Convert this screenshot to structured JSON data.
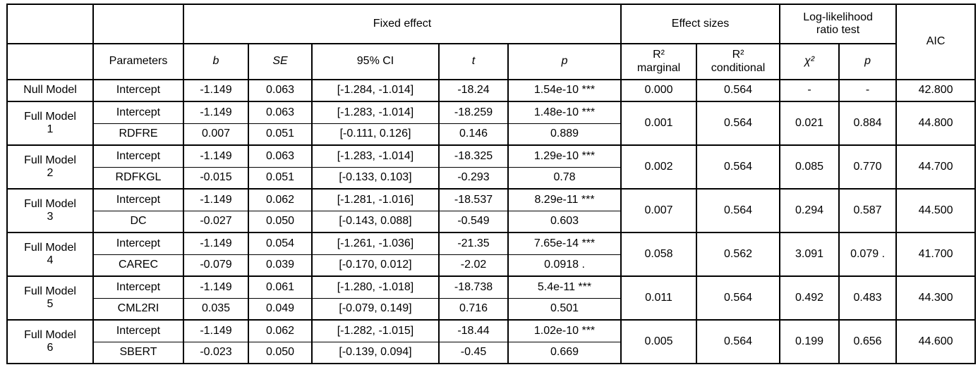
{
  "table": {
    "header": {
      "groups": {
        "fixed_effect": "Fixed effect",
        "effect_sizes": "Effect sizes",
        "lrt": "Log-likelihood\nratio test",
        "aic": "AIC"
      },
      "columns": {
        "parameters": "Parameters",
        "b": "b",
        "se": "SE",
        "ci": "95% CI",
        "t": "t",
        "p": "p",
        "r2_marginal": "R²\nmarginal",
        "r2_conditional": "R²\nconditional",
        "chi2": "χ²",
        "p_lrt": "p"
      }
    },
    "models": [
      {
        "name": "Null Model",
        "rows": [
          {
            "param": "Intercept",
            "b": "-1.149",
            "se": "0.063",
            "ci": "[-1.284, -1.014]",
            "t": "-18.24",
            "p": "1.54e-10 ***"
          }
        ],
        "r2_marginal": "0.000",
        "r2_conditional": "0.564",
        "chi2": "-",
        "p_lrt": "-",
        "aic": "42.800"
      },
      {
        "name": "Full Model\n1",
        "rows": [
          {
            "param": "Intercept",
            "b": "-1.149",
            "se": "0.063",
            "ci": "[-1.283, -1.014]",
            "t": "-18.259",
            "p": "1.48e-10 ***"
          },
          {
            "param": "RDFRE",
            "b": "0.007",
            "se": "0.051",
            "ci": "[-0.111, 0.126]",
            "t": "0.146",
            "p": "0.889"
          }
        ],
        "r2_marginal": "0.001",
        "r2_conditional": "0.564",
        "chi2": "0.021",
        "p_lrt": "0.884",
        "aic": "44.800"
      },
      {
        "name": "Full Model\n2",
        "rows": [
          {
            "param": "Intercept",
            "b": "-1.149",
            "se": "0.063",
            "ci": "[-1.283, -1.014]",
            "t": "-18.325",
            "p": "1.29e-10 ***"
          },
          {
            "param": "RDFKGL",
            "b": "-0.015",
            "se": "0.051",
            "ci": "[-0.133, 0.103]",
            "t": "-0.293",
            "p": "0.78"
          }
        ],
        "r2_marginal": "0.002",
        "r2_conditional": "0.564",
        "chi2": "0.085",
        "p_lrt": "0.770",
        "aic": "44.700"
      },
      {
        "name": "Full Model\n3",
        "rows": [
          {
            "param": "Intercept",
            "b": "-1.149",
            "se": "0.062",
            "ci": "[-1.281, -1.016]",
            "t": "-18.537",
            "p": "8.29e-11 ***"
          },
          {
            "param": "DC",
            "b": "-0.027",
            "se": "0.050",
            "ci": "[-0.143, 0.088]",
            "t": "-0.549",
            "p": "0.603"
          }
        ],
        "r2_marginal": "0.007",
        "r2_conditional": "0.564",
        "chi2": "0.294",
        "p_lrt": "0.587",
        "aic": "44.500"
      },
      {
        "name": "Full Model\n4",
        "rows": [
          {
            "param": "Intercept",
            "b": "-1.149",
            "se": "0.054",
            "ci": "[-1.261, -1.036]",
            "t": "-21.35",
            "p": "7.65e-14 ***"
          },
          {
            "param": "CAREC",
            "b": "-0.079",
            "se": "0.039",
            "ci": "[-0.170, 0.012]",
            "t": "-2.02",
            "p": "0.0918 ."
          }
        ],
        "r2_marginal": "0.058",
        "r2_conditional": "0.562",
        "chi2": "3.091",
        "p_lrt": "0.079 .",
        "aic": "41.700"
      },
      {
        "name": "Full Model\n5",
        "rows": [
          {
            "param": "Intercept",
            "b": "-1.149",
            "se": "0.061",
            "ci": "[-1.280, -1.018]",
            "t": "-18.738",
            "p": "5.4e-11 ***"
          },
          {
            "param": "CML2RI",
            "b": "0.035",
            "se": "0.049",
            "ci": "[-0.079, 0.149]",
            "t": "0.716",
            "p": "0.501"
          }
        ],
        "r2_marginal": "0.011",
        "r2_conditional": "0.564",
        "chi2": "0.492",
        "p_lrt": "0.483",
        "aic": "44.300"
      },
      {
        "name": "Full Model\n6",
        "rows": [
          {
            "param": "Intercept",
            "b": "-1.149",
            "se": "0.062",
            "ci": "[-1.282, -1.015]",
            "t": "-18.44",
            "p": "1.02e-10 ***"
          },
          {
            "param": "SBERT",
            "b": "-0.023",
            "se": "0.050",
            "ci": "[-0.139, 0.094]",
            "t": "-0.45",
            "p": "0.669"
          }
        ],
        "r2_marginal": "0.005",
        "r2_conditional": "0.564",
        "chi2": "0.199",
        "p_lrt": "0.656",
        "aic": "44.600"
      }
    ]
  }
}
